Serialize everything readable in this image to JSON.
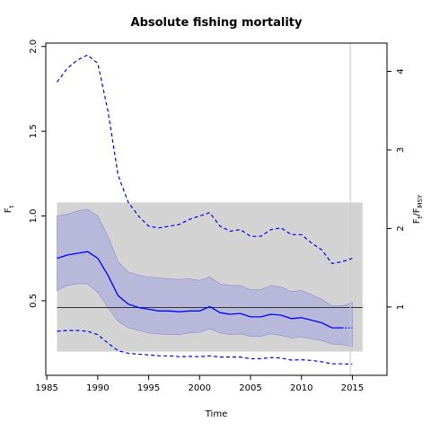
{
  "chart_data": {
    "type": "line",
    "title": "Absolute fishing mortality",
    "xlabel": "Time",
    "ylabel": "F",
    "ylabel_sub": "t",
    "y2label_num": "F",
    "y2label_num_sub": "t",
    "y2label_den": "F",
    "y2label_den_sub": "MSY",
    "xlim": [
      1984.9,
      2018.4
    ],
    "ylim": [
      0.06,
      2.02
    ],
    "y2lim": [
      0.13,
      4.36
    ],
    "x_ticks": [
      1985,
      1990,
      1995,
      2000,
      2005,
      2010,
      2015
    ],
    "y_ticks": [
      "0.5",
      "1.0",
      "1.5",
      "2.0"
    ],
    "y2_ticks": [
      "1",
      "2",
      "3",
      "4"
    ],
    "colors": {
      "median_line": "#0000ff",
      "ci_band": "#b3b3dc",
      "ci_band_edge": "#8c8cd0",
      "fmsy_band": "#d3d3d3",
      "fmsy_line": "#333333",
      "vline": "#c8c8c8"
    },
    "fmsy_band": {
      "x_range": [
        1986,
        2016
      ],
      "y_range": [
        0.2,
        1.08
      ]
    },
    "fmsy_line": {
      "y": 0.46
    },
    "vline": {
      "x": 2014.8
    },
    "series": [
      {
        "x": [
          1986,
          1987,
          1988,
          1989,
          1990,
          1991,
          1992,
          1993,
          1994,
          1995,
          1996,
          1997,
          1998,
          1999,
          2000,
          2001,
          2002,
          2003,
          2004,
          2005,
          2006,
          2007,
          2008,
          2009,
          2010,
          2011,
          2012,
          2013,
          2014,
          2015
        ],
        "median": [
          0.75,
          0.77,
          0.78,
          0.79,
          0.75,
          0.65,
          0.53,
          0.48,
          0.46,
          0.45,
          0.44,
          0.44,
          0.435,
          0.44,
          0.44,
          0.465,
          0.43,
          0.42,
          0.425,
          0.405,
          0.405,
          0.42,
          0.415,
          0.395,
          0.4,
          0.385,
          0.37,
          0.34,
          0.34,
          0.34
        ],
        "lower_ci": [
          0.56,
          0.59,
          0.6,
          0.6,
          0.55,
          0.46,
          0.38,
          0.34,
          0.325,
          0.31,
          0.305,
          0.3,
          0.3,
          0.31,
          0.315,
          0.335,
          0.31,
          0.3,
          0.305,
          0.29,
          0.29,
          0.305,
          0.295,
          0.28,
          0.285,
          0.275,
          0.265,
          0.245,
          0.24,
          0.23
        ],
        "upper_ci": [
          1.0,
          1.01,
          1.03,
          1.04,
          1.0,
          0.88,
          0.73,
          0.67,
          0.65,
          0.64,
          0.635,
          0.63,
          0.625,
          0.63,
          0.62,
          0.64,
          0.6,
          0.59,
          0.59,
          0.565,
          0.565,
          0.59,
          0.58,
          0.555,
          0.56,
          0.535,
          0.51,
          0.47,
          0.47,
          0.49
        ],
        "upper_dashed": [
          1.79,
          1.87,
          1.92,
          1.95,
          1.9,
          1.62,
          1.24,
          1.08,
          1.0,
          0.94,
          0.93,
          0.94,
          0.95,
          0.98,
          1.0,
          1.02,
          0.94,
          0.91,
          0.92,
          0.88,
          0.88,
          0.92,
          0.93,
          0.89,
          0.89,
          0.84,
          0.8,
          0.72,
          0.73,
          0.75
        ],
        "lower_dashed": [
          0.32,
          0.325,
          0.325,
          0.32,
          0.3,
          0.25,
          0.205,
          0.19,
          0.185,
          0.18,
          0.175,
          0.175,
          0.17,
          0.172,
          0.17,
          0.175,
          0.168,
          0.168,
          0.168,
          0.158,
          0.158,
          0.165,
          0.162,
          0.15,
          0.152,
          0.148,
          0.14,
          0.128,
          0.128,
          0.125
        ]
      }
    ]
  }
}
